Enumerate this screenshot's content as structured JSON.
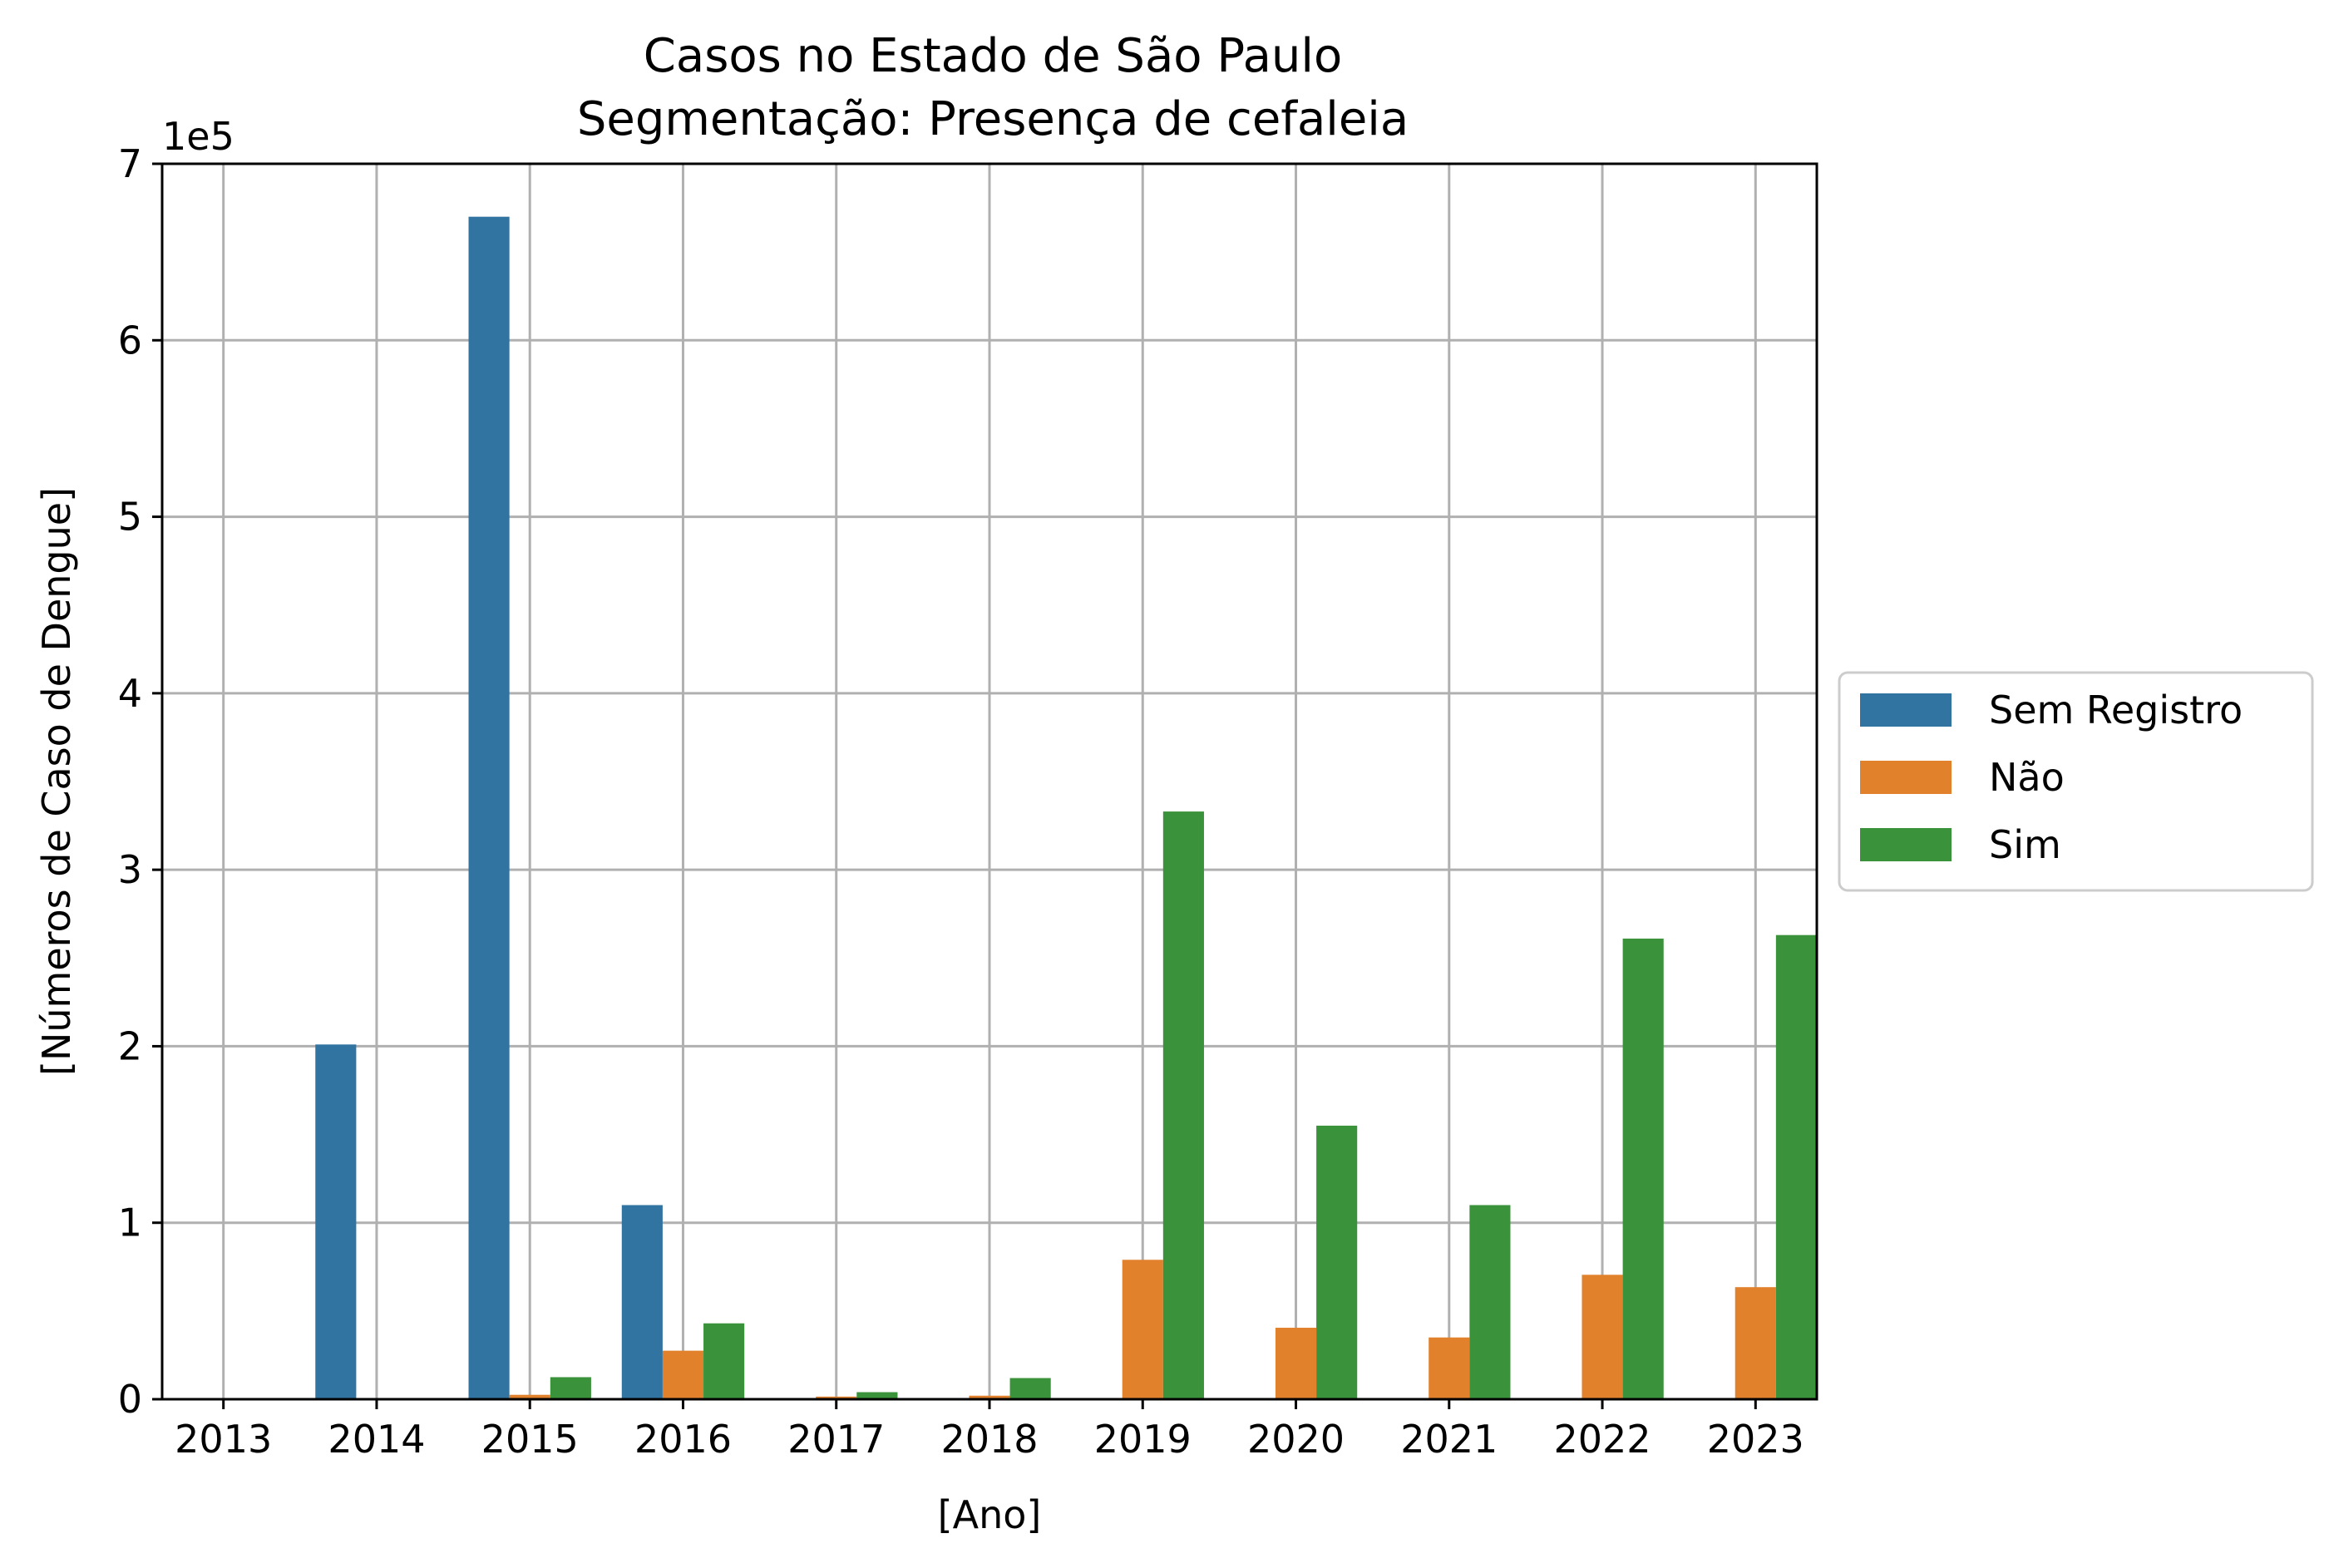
{
  "chart_data": {
    "type": "bar",
    "title": "Casos no Estado de São Paulo\nSegmentação: Presença de cefaleia",
    "title_lines": [
      "Casos no Estado de São Paulo",
      "Segmentação: Presença de cefaleia"
    ],
    "xlabel": "[Ano]",
    "ylabel": "[Números de Caso de Dengue]",
    "y_offset_label": "1e5",
    "y_scale_factor": 100000,
    "ylim": [
      0,
      700000
    ],
    "yticks": [
      0,
      100000,
      200000,
      300000,
      400000,
      500000,
      600000,
      700000
    ],
    "ytick_labels": [
      "0",
      "1",
      "2",
      "3",
      "4",
      "5",
      "6",
      "7"
    ],
    "categories": [
      "2013",
      "2014",
      "2015",
      "2016",
      "2017",
      "2018",
      "2019",
      "2020",
      "2021",
      "2022",
      "2023"
    ],
    "grid": true,
    "legend_position": "center-right outside",
    "series": [
      {
        "name": "Sem Registro",
        "color": "#3274a1",
        "values": [
          0,
          201000,
          670000,
          110000,
          0,
          0,
          0,
          0,
          0,
          0,
          0
        ]
      },
      {
        "name": "Não",
        "color": "#e1812c",
        "values": [
          0,
          0,
          2500,
          27500,
          1500,
          2000,
          79000,
          40500,
          35000,
          70500,
          63500
        ]
      },
      {
        "name": "Sim",
        "color": "#3a923a",
        "values": [
          0,
          0,
          12500,
          43000,
          4000,
          12000,
          333000,
          155000,
          110000,
          261000,
          263000
        ]
      }
    ]
  }
}
